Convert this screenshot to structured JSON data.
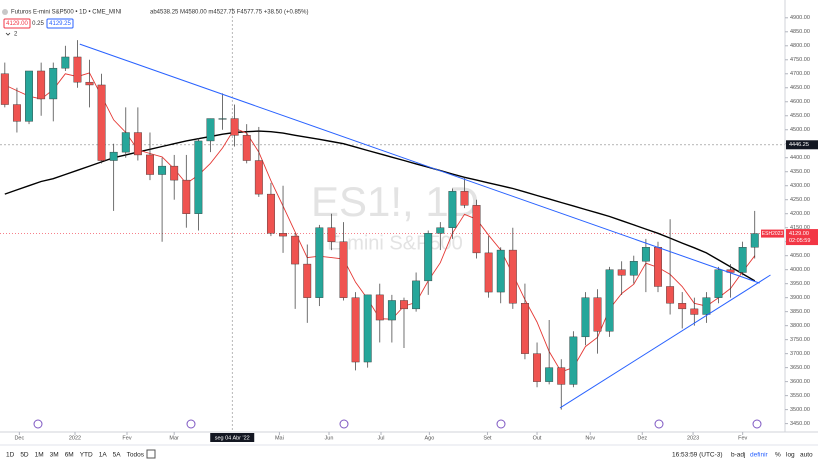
{
  "chart_data": {
    "type": "candlestick",
    "header": {
      "symbol": "Futuros E-mini S&P500 • 1D • CME_MINI",
      "ohlc": "ab4538.25  M4580.00  m4527.75  F4577.75  +38.50 (+0.85%)",
      "bid": "4129.00",
      "spread": "0.25",
      "ask": "4129.25",
      "indicators": "2"
    },
    "watermark": {
      "title": "ES1!, 1D",
      "subtitle": "E-mini S&P500"
    },
    "categories": [
      null,
      null,
      null,
      null,
      null,
      null,
      null,
      null,
      null,
      null,
      null,
      null,
      null,
      null,
      null,
      null,
      null,
      null,
      null,
      null,
      null,
      null,
      null,
      null,
      null,
      null,
      null,
      null,
      null,
      null,
      null,
      null,
      null,
      null,
      null,
      null,
      null,
      null,
      null,
      null,
      null,
      null,
      null,
      null,
      null,
      null,
      null,
      null,
      null,
      null,
      null,
      null,
      null,
      null,
      null,
      null,
      null,
      null,
      null,
      null,
      null,
      null,
      null
    ],
    "open": [
      4700,
      4590,
      4530,
      4710,
      4610,
      4720,
      4760,
      4670,
      4660,
      4390,
      4420,
      4490,
      4410,
      4340,
      4370,
      4320,
      4200,
      4460,
      4540,
      4540,
      4480,
      4390,
      4270,
      4130,
      4120,
      4020,
      3900,
      4150,
      4100,
      3900,
      3670,
      3910,
      3820,
      3890,
      3860,
      3960,
      4130,
      4150,
      4280,
      4230,
      4060,
      3920,
      4070,
      3880,
      3700,
      3600,
      3650,
      3590,
      3760,
      3900,
      3780,
      4000,
      3980,
      4030,
      4080,
      3940,
      3880,
      3860,
      3840,
      3900,
      4000,
      3990,
      4080
    ],
    "high": [
      4740,
      4650,
      4710,
      4740,
      4740,
      4800,
      4820,
      4750,
      4700,
      4450,
      4580,
      4580,
      4490,
      4400,
      4410,
      4410,
      4470,
      4540,
      4630,
      4590,
      4520,
      4510,
      4310,
      4300,
      4130,
      4090,
      4160,
      4200,
      4170,
      3920,
      3910,
      3950,
      3910,
      3900,
      3990,
      4140,
      4170,
      4290,
      4330,
      4250,
      4120,
      4080,
      4150,
      3950,
      3740,
      3820,
      3680,
      3780,
      3920,
      3930,
      4010,
      4030,
      4050,
      4110,
      4100,
      4180,
      3920,
      3900,
      3920,
      4010,
      4020,
      4100,
      4210
    ],
    "low": [
      4580,
      4490,
      4520,
      4550,
      4530,
      4710,
      4650,
      4580,
      4380,
      4210,
      4400,
      4390,
      4320,
      4100,
      4250,
      4150,
      4140,
      4420,
      4500,
      4440,
      4380,
      4260,
      4120,
      4060,
      3860,
      3810,
      3870,
      4070,
      3890,
      3640,
      3650,
      3740,
      3740,
      3720,
      3850,
      3910,
      4070,
      4110,
      4220,
      4040,
      3900,
      3880,
      3860,
      3680,
      3580,
      3590,
      3500,
      3580,
      3730,
      3700,
      3760,
      3910,
      3950,
      3920,
      3920,
      3840,
      3790,
      3800,
      3810,
      3880,
      3900,
      3980,
      4040
    ],
    "close": [
      4590,
      4530,
      4710,
      4610,
      4720,
      4760,
      4670,
      4660,
      4390,
      4420,
      4490,
      4410,
      4340,
      4370,
      4320,
      4200,
      4460,
      4540,
      4540,
      4480,
      4390,
      4270,
      4130,
      4120,
      4020,
      3900,
      4150,
      4100,
      3900,
      3670,
      3910,
      3820,
      3890,
      3860,
      3960,
      4130,
      4150,
      4280,
      4230,
      4060,
      3920,
      4070,
      3880,
      3700,
      3600,
      3650,
      3590,
      3760,
      3900,
      3780,
      4000,
      3980,
      4030,
      4080,
      3940,
      3880,
      3860,
      3840,
      3900,
      4000,
      3990,
      4080,
      4129
    ],
    "up_color": "#26a69a",
    "down_color": "#ef5350",
    "lines": [
      {
        "color": "#000000",
        "values": [
          4270,
          4285,
          4300,
          4315,
          4325,
          4340,
          4355,
          4370,
          4385,
          4400,
          4410,
          4420,
          4430,
          4440,
          4450,
          4460,
          4468,
          4476,
          4484,
          4490,
          4493,
          4495,
          4493,
          4488,
          4480,
          4473,
          4466,
          4458,
          4450,
          4438,
          4426,
          4414,
          4402,
          4390,
          4378,
          4366,
          4354,
          4342,
          4330,
          4320,
          4310,
          4300,
          4290,
          4278,
          4265,
          4253,
          4240,
          4228,
          4215,
          4203,
          4190,
          4175,
          4160,
          4145,
          4130,
          4113,
          4095,
          4078,
          4060,
          4035,
          4010,
          3985,
          3960
        ]
      },
      {
        "color": "#e53935",
        "values": [
          4660,
          4640,
          4620,
          4610,
          4643,
          4700,
          4690,
          4703,
          4620,
          4535,
          4490,
          4428,
          4415,
          4403,
          4360,
          4308,
          4338,
          4380,
          4435,
          4505,
          4488,
          4420,
          4318,
          4228,
          4135,
          4043,
          4048,
          4043,
          4038,
          3955,
          3895,
          3825,
          3823,
          3870,
          3883,
          3960,
          4025,
          4130,
          4198,
          4180,
          4123,
          4070,
          3983,
          3893,
          3813,
          3708,
          3635,
          3650,
          3725,
          3758,
          3860,
          3915,
          3948,
          4023,
          4008,
          3983,
          3940,
          3880,
          3870,
          3900,
          3933,
          3993,
          4050
        ]
      }
    ],
    "trendlines": [
      {
        "color": "#2962ff",
        "x": [
          6.2,
          62.4
        ],
        "values": [
          4806,
          3952
        ]
      },
      {
        "color": "#2962ff",
        "x": [
          45.9,
          63.3
        ],
        "values": [
          3506,
          3981
        ]
      }
    ],
    "hline": {
      "value": 4446.25,
      "label": "4446.25"
    },
    "price_line": {
      "value": 4129,
      "label": "4129.00",
      "symbol": "ESH2023",
      "countdown": "02:05:59",
      "color": "#f23645"
    },
    "crosshair": {
      "x": 18.8,
      "label": "seg 04 Abr '22"
    },
    "xlim": [
      -0.4,
      64.5
    ],
    "xticks": [
      {
        "value": 1.2,
        "label": "Dec"
      },
      {
        "value": 5.8,
        "label": "2022"
      },
      {
        "value": 10.1,
        "label": "Fev"
      },
      {
        "value": 14,
        "label": "Mar"
      },
      {
        "value": 22.7,
        "label": "Mai"
      },
      {
        "value": 26.8,
        "label": "Jun"
      },
      {
        "value": 31.1,
        "label": "Jul"
      },
      {
        "value": 35.1,
        "label": "Ago"
      },
      {
        "value": 39.9,
        "label": "Set"
      },
      {
        "value": 44,
        "label": "Out"
      },
      {
        "value": 48.4,
        "label": "Nov"
      },
      {
        "value": 52.7,
        "label": "Dez"
      },
      {
        "value": 56.9,
        "label": "2023"
      },
      {
        "value": 61,
        "label": "Fev"
      }
    ],
    "ylim": [
      3420,
      4935
    ],
    "yticks": [
      {
        "value": 3450,
        "label": "3450.00"
      },
      {
        "value": 3500,
        "label": "3500.00"
      },
      {
        "value": 3550,
        "label": "3550.00"
      },
      {
        "value": 3600,
        "label": "3600.00"
      },
      {
        "value": 3650,
        "label": "3650.00"
      },
      {
        "value": 3700,
        "label": "3700.00"
      },
      {
        "value": 3750,
        "label": "3750.00"
      },
      {
        "value": 3800,
        "label": "3800.00"
      },
      {
        "value": 3850,
        "label": "3850.00"
      },
      {
        "value": 3900,
        "label": "3900.00"
      },
      {
        "value": 3950,
        "label": "3950.00"
      },
      {
        "value": 4000,
        "label": "4000.00"
      },
      {
        "value": 4050,
        "label": "4050.00"
      },
      {
        "value": 4100,
        "label": "4100.00"
      },
      {
        "value": 4150,
        "label": "4150.00"
      },
      {
        "value": 4200,
        "label": "4200.00"
      },
      {
        "value": 4250,
        "label": "4250.00"
      },
      {
        "value": 4300,
        "label": "4300.00"
      },
      {
        "value": 4350,
        "label": "4350.00"
      },
      {
        "value": 4400,
        "label": "4400.00"
      },
      {
        "value": 4450,
        "label": "4450.00"
      },
      {
        "value": 4500,
        "label": "4500.00"
      },
      {
        "value": 4550,
        "label": "4550.00"
      },
      {
        "value": 4600,
        "label": "4600.00"
      },
      {
        "value": 4650,
        "label": "4650.00"
      },
      {
        "value": 4700,
        "label": "4700.00"
      },
      {
        "value": 4750,
        "label": "4750.00"
      },
      {
        "value": 4800,
        "label": "4800.00"
      },
      {
        "value": 4850,
        "label": "4850.00"
      },
      {
        "value": 4900,
        "label": "4900.00"
      }
    ],
    "toolbar": [
      "1D",
      "5D",
      "1M",
      "3M",
      "6M",
      "YTD",
      "1A",
      "5A",
      "Todos"
    ],
    "status": {
      "time": "16:53:59 (UTC-3)",
      "adjust": "b-adj",
      "settings": "definir",
      "percent": "%",
      "log": "log",
      "auto": "auto"
    }
  }
}
